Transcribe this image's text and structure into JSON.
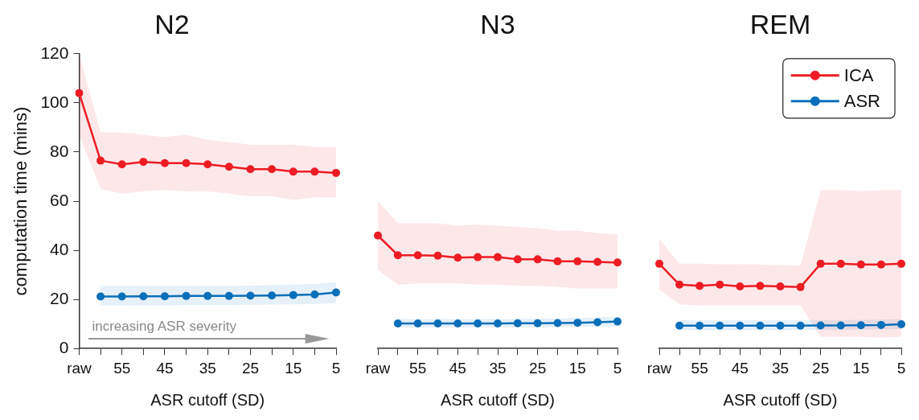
{
  "chart_data": [
    {
      "type": "line",
      "title": "N2",
      "xlabel": "ASR cutoff (SD)",
      "ylabel": "computation time (mins)",
      "categories": [
        "raw",
        null,
        "55",
        null,
        "45",
        null,
        "35",
        null,
        "25",
        null,
        "15",
        null,
        "5"
      ],
      "ylim": [
        0,
        120
      ],
      "yticks": [
        0,
        20,
        40,
        60,
        80,
        100,
        120
      ],
      "grid": false,
      "legend": false,
      "marker": "circle",
      "annotations": [
        "increasing ASR severity"
      ],
      "series": [
        {
          "color": "#ed1c24",
          "values": [
            104,
            76.5,
            75,
            76,
            75.5,
            75.5,
            75,
            74,
            73,
            73,
            72,
            72,
            71.5
          ],
          "upper": [
            120,
            88,
            88,
            87,
            86,
            87,
            85,
            84,
            83,
            83,
            83,
            82,
            82
          ],
          "lower": [
            87,
            65,
            63,
            64,
            64.5,
            64,
            64,
            63,
            62,
            62,
            60.5,
            61.5,
            61.5
          ]
        },
        {
          "color": "#0a6fba",
          "values": [
            null,
            21.2,
            21.2,
            21.3,
            21.3,
            21.4,
            21.4,
            21.4,
            21.5,
            21.6,
            21.8,
            22,
            22.8
          ],
          "upper": [
            null,
            25.5,
            25.5,
            25.5,
            25.5,
            25.5,
            25.5,
            25.5,
            25.6,
            25.8,
            26,
            26.3,
            27
          ],
          "lower": [
            null,
            17.5,
            17.5,
            17.6,
            17.6,
            17.7,
            17.7,
            17.7,
            17.8,
            17.9,
            18,
            18.2,
            18.5
          ]
        }
      ]
    },
    {
      "type": "line",
      "title": "N3",
      "xlabel": "ASR cutoff (SD)",
      "categories": [
        "raw",
        null,
        "55",
        null,
        "45",
        null,
        "35",
        null,
        "25",
        null,
        "15",
        null,
        "5"
      ],
      "ylim": [
        0,
        120
      ],
      "yticks": [
        0,
        20,
        40,
        60,
        80,
        100,
        120
      ],
      "tick_labels": "x",
      "grid": false,
      "legend": false,
      "marker": "circle",
      "series": [
        {
          "color": "#ed1c24",
          "values": [
            46,
            38,
            38,
            37.8,
            37,
            37.2,
            37.2,
            36.3,
            36.3,
            35.5,
            35.5,
            35.3,
            35
          ],
          "upper": [
            60,
            51,
            51,
            51,
            50,
            50.5,
            50,
            49.5,
            49,
            48,
            48,
            47,
            46.5
          ],
          "lower": [
            32,
            26,
            26.5,
            26.5,
            26.5,
            26,
            26,
            25.5,
            25.5,
            25,
            24.5,
            24.5,
            24.5
          ]
        },
        {
          "color": "#0a6fba",
          "values": [
            null,
            10.2,
            10.2,
            10.2,
            10.2,
            10.2,
            10.2,
            10.3,
            10.3,
            10.4,
            10.5,
            10.7,
            11
          ],
          "upper": [
            null,
            12,
            12,
            12,
            12,
            12,
            12,
            12,
            12.2,
            12.3,
            12.5,
            12.7,
            13
          ],
          "lower": [
            null,
            8.5,
            8.5,
            8.5,
            8.5,
            8.5,
            8.5,
            8.6,
            8.6,
            8.7,
            8.8,
            8.9,
            9
          ]
        }
      ]
    },
    {
      "type": "line",
      "title": "REM",
      "xlabel": "ASR cutoff (SD)",
      "categories": [
        "raw",
        null,
        "55",
        null,
        "45",
        null,
        "35",
        null,
        "25",
        null,
        "15",
        null,
        "5"
      ],
      "ylim": [
        0,
        120
      ],
      "yticks": [
        0,
        20,
        40,
        60,
        80,
        100,
        120
      ],
      "tick_labels": "x",
      "grid": false,
      "legend": "top right",
      "marker": "circle",
      "series": [
        {
          "name": "ICA",
          "color": "#ed1c24",
          "values": [
            34.5,
            26,
            25.5,
            26,
            25.3,
            25.5,
            25.3,
            25,
            34.5,
            34.5,
            34.2,
            34.2,
            34.5
          ],
          "upper": [
            44.5,
            34.5,
            34.5,
            34.3,
            34.3,
            34.2,
            34,
            33.8,
            64.5,
            64.5,
            64,
            64.5,
            64.5
          ],
          "lower": [
            24,
            18,
            17.5,
            17.5,
            17.5,
            17.5,
            17.5,
            17.5,
            4.8,
            4.8,
            4.8,
            4.5,
            4.8
          ]
        },
        {
          "name": "ASR",
          "color": "#0a6fba",
          "values": [
            null,
            9.3,
            9.3,
            9.3,
            9.3,
            9.3,
            9.3,
            9.3,
            9.4,
            9.4,
            9.5,
            9.6,
            9.9
          ],
          "upper": [
            null,
            11.5,
            11.5,
            11.5,
            11.5,
            11.5,
            11.5,
            11.5,
            11.6,
            11.6,
            11.7,
            11.8,
            12
          ],
          "lower": [
            null,
            7.5,
            7.5,
            7.5,
            7.5,
            7.5,
            7.5,
            7.5,
            7.6,
            7.6,
            7.7,
            7.8,
            8
          ]
        }
      ]
    }
  ]
}
